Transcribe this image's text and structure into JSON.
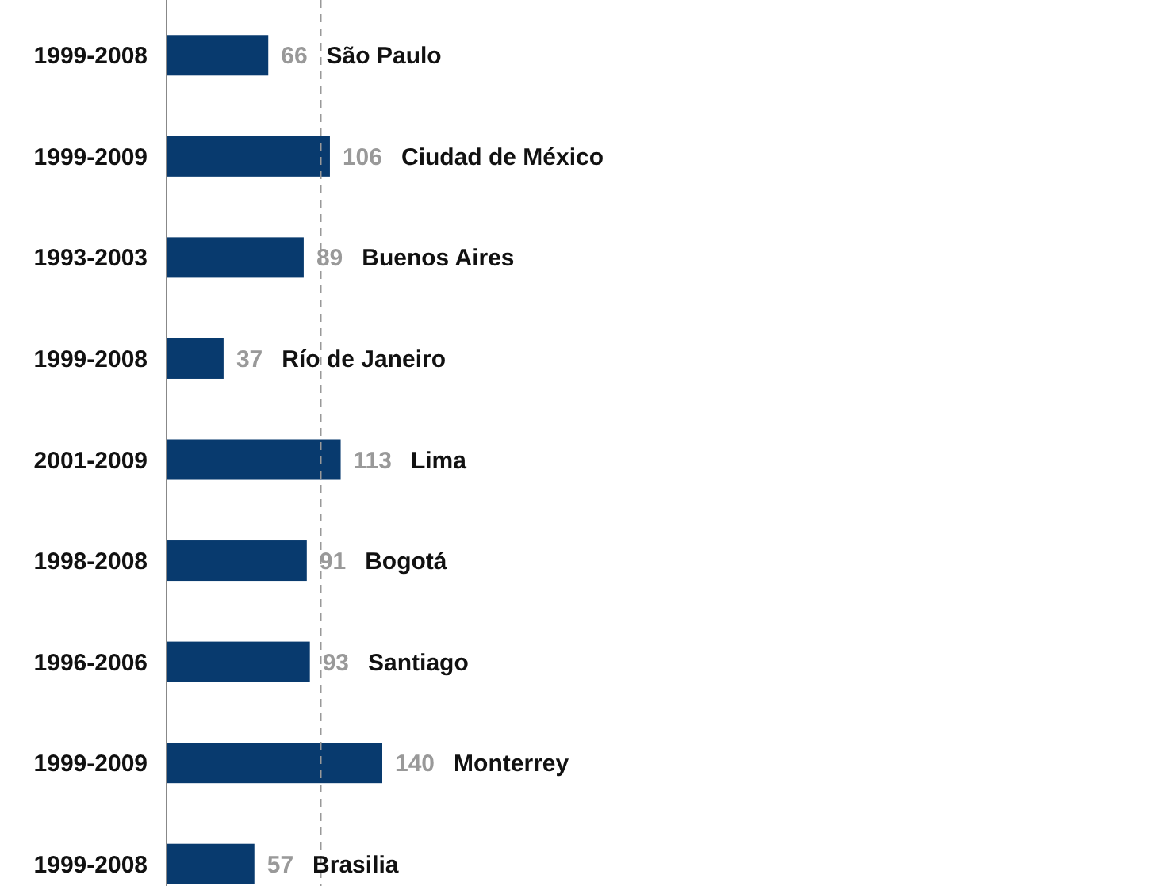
{
  "chart_data": {
    "type": "bar",
    "orientation": "horizontal",
    "categories": [
      "1999-2008",
      "1999-2009",
      "1993-2003",
      "1999-2008",
      "2001-2009",
      "1998-2008",
      "1996-2006",
      "1999-2009",
      "1999-2008"
    ],
    "values": [
      66,
      106,
      89,
      37,
      113,
      91,
      93,
      140,
      57
    ],
    "color": "#083a6e",
    "data_labels": true,
    "xlim": [
      0,
      140
    ],
    "tick_labels": "y",
    "ref_lines": [
      {
        "axis": "x",
        "value": 100,
        "color": "#999999",
        "line_style": "dashed"
      }
    ],
    "annotations": [
      "São Paulo",
      "Ciudad de México",
      "Buenos Aires",
      "Río de Janeiro",
      "Lima",
      "Bogotá",
      "Santiago",
      "Monterrey",
      "Brasilia"
    ]
  }
}
